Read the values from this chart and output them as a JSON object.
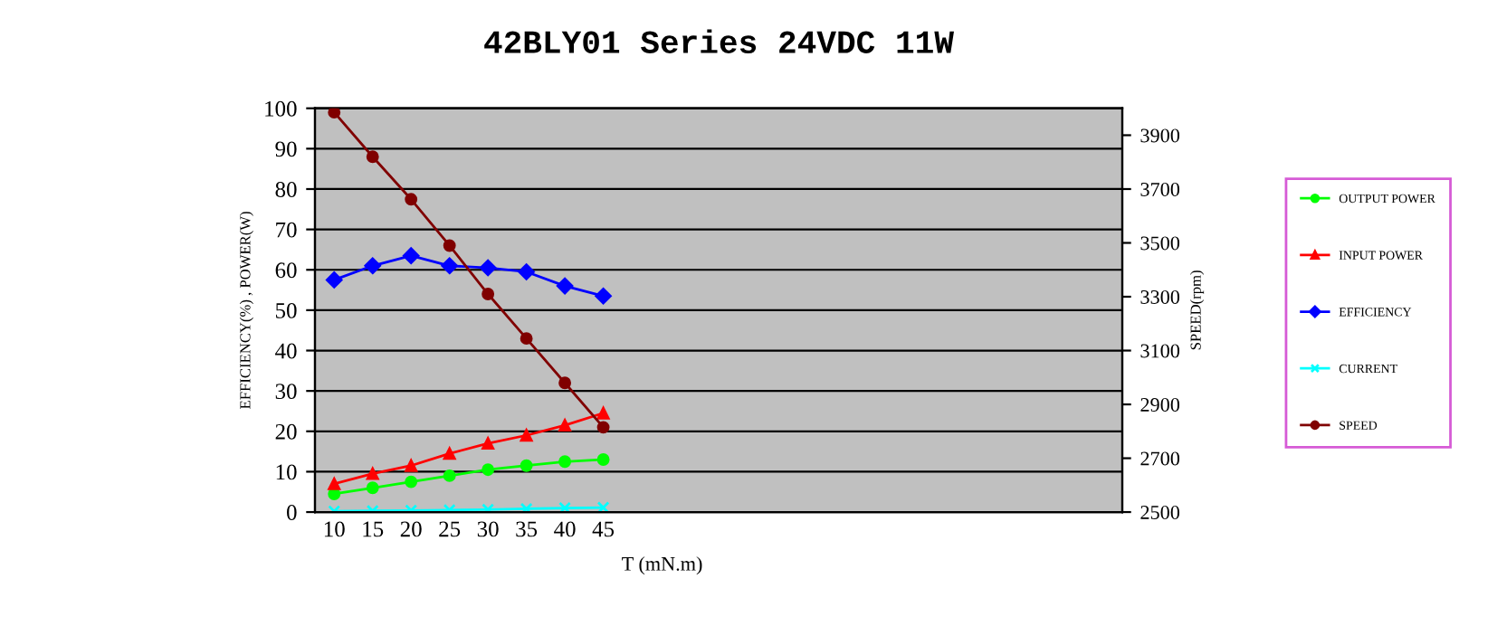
{
  "chart_data": {
    "type": "line",
    "title": "42BLY01 Series 24VDC 11W",
    "xlabel": "T (mN.m)",
    "ylabel": "EFFICIENCY(%) , POWER(W)",
    "y2label": "SPEED(rpm)",
    "categories": [
      "10",
      "15",
      "20",
      "25",
      "30",
      "35",
      "40",
      "45",
      null,
      null,
      null,
      null,
      null,
      null,
      null,
      null,
      null,
      null,
      null,
      null,
      null
    ],
    "series": [
      {
        "name": "OUTPUT POWER",
        "color": "#00ff00",
        "marker": "circle",
        "values": [
          4.5,
          6,
          7.5,
          9,
          10.5,
          11.5,
          12.5,
          13,
          null,
          null,
          null,
          null,
          null,
          null,
          null,
          null,
          null,
          null,
          null,
          null,
          null
        ]
      },
      {
        "name": "INPUT POWER",
        "color": "#ff0000",
        "marker": "triangle",
        "values": [
          7,
          9.5,
          11.5,
          14.5,
          17,
          19,
          21.5,
          24.5,
          null,
          null,
          null,
          null,
          null,
          null,
          null,
          null,
          null,
          null,
          null,
          null,
          null
        ]
      },
      {
        "name": "EFFICIENCY",
        "color": "#0000ff",
        "marker": "diamond",
        "values": [
          57.5,
          61,
          63.5,
          61,
          60.5,
          59.5,
          56,
          53.5,
          null,
          null,
          null,
          null,
          null,
          null,
          null,
          null,
          null,
          null,
          null,
          null,
          null
        ]
      },
      {
        "name": "CURRENT",
        "color": "#00ffff",
        "marker": "cross",
        "values": [
          0.2,
          0.3,
          0.4,
          0.5,
          0.6,
          0.8,
          1,
          1.1,
          null,
          null,
          null,
          null,
          null,
          null,
          null,
          null,
          null,
          null,
          null,
          null,
          null
        ]
      },
      {
        "name": "SPEED",
        "color": "#800000",
        "marker": "circle",
        "axis": "y2",
        "values": [
          3985,
          3820,
          3662,
          3490,
          3310,
          3145,
          2980,
          2815,
          null,
          null,
          null,
          null,
          null,
          null,
          null,
          null,
          null,
          null,
          null,
          null,
          null
        ]
      }
    ],
    "ylim": [
      0,
      100
    ],
    "yticks": [
      0,
      10,
      20,
      30,
      40,
      50,
      60,
      70,
      80,
      90,
      100
    ],
    "y2lim": [
      2500,
      4000
    ],
    "y2ticks": [
      2500,
      2700,
      2900,
      3100,
      3300,
      3500,
      3700,
      3900
    ],
    "grid": "y",
    "legend": "right"
  }
}
